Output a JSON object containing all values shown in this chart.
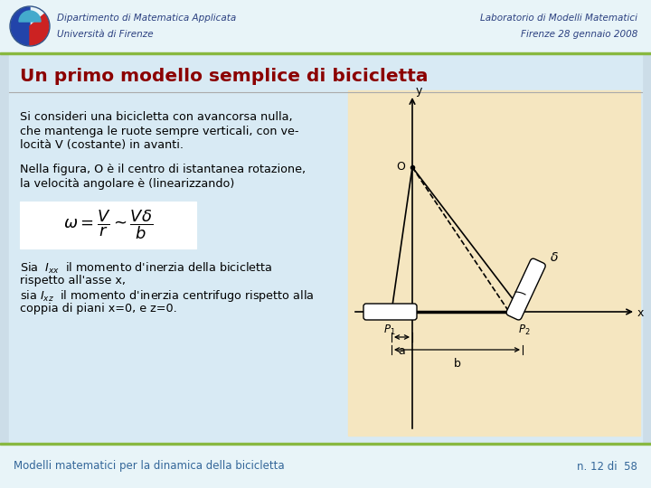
{
  "header_bg": "#e8f4f8",
  "header_left_line1": "Dipartimento di Matematica Applicata",
  "header_left_line2": "Università di Firenze",
  "header_right_line1": "Laboratorio di Modelli Matematici",
  "header_right_line2": "Firenze 28 gennaio 2008",
  "header_text_color": "#2b4080",
  "slide_bg": "#ccdde8",
  "title": "Un primo modello semplice di bicicletta",
  "title_color": "#8b0000",
  "diagram_bg": "#f5e6c0",
  "body_text_color": "#000000",
  "footer_left": "Modelli matematici per la dinamica della bicicletta",
  "footer_right": "n. 12 di  58",
  "footer_text_color": "#336699",
  "green_line_color": "#88b840",
  "para1_line1": "Si consideri una bicicletta con avancorsa nulla,",
  "para1_line2": "che mantenga le ruote sempre verticali, con ve-",
  "para1_line3": "locità V (costante) in avanti.",
  "para2_line1": "Nella figura, O è il centro di istantanea rotazione,",
  "para2_line2": "la velocità angolare è (linearizzando)",
  "para3_line1": "Sia  $I_{xx}$  il momento d'inerzia della bicicletta",
  "para3_line2": "rispetto all'asse x,",
  "para3_line3": "sia $I_{xz}$  il momento d'inerzia centrifugo rispetto alla",
  "para3_line4": "coppia di piani x=0, e z=0."
}
